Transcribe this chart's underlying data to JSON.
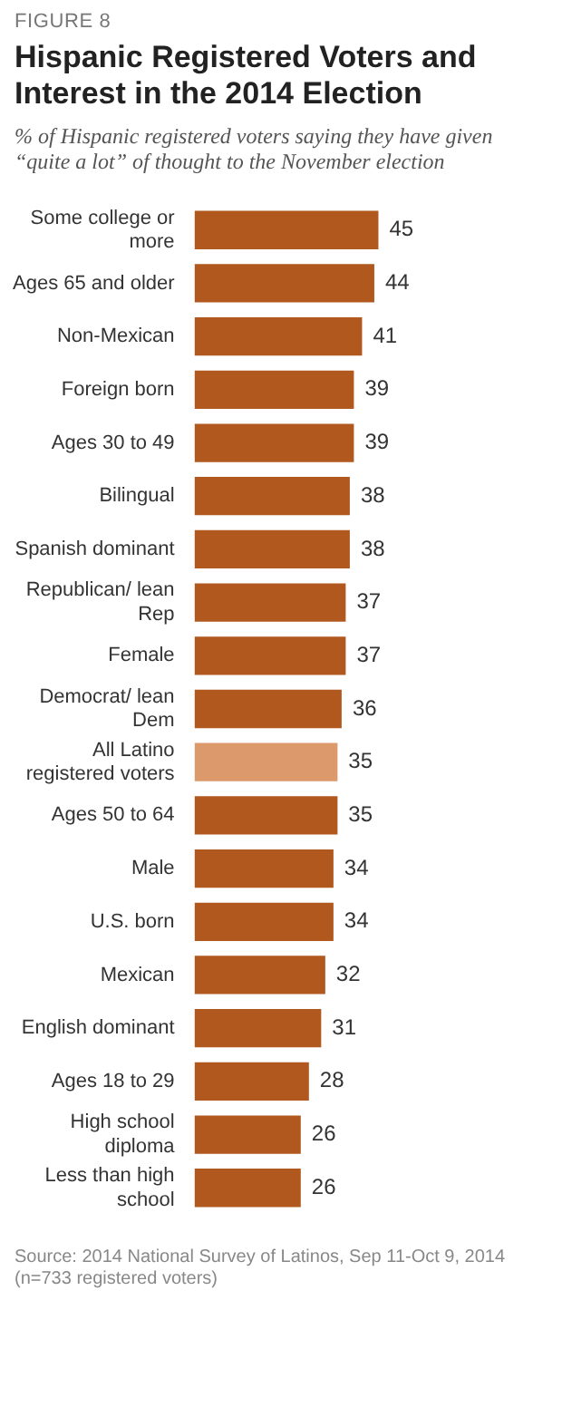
{
  "chart_data": {
    "type": "bar",
    "orientation": "horizontal",
    "title": "Hispanic Registered Voters and Interest in the 2014 Election",
    "subtitle": "% of Hispanic registered voters saying they have given “quite a lot” of thought to the November election",
    "categories": [
      "Some college or more",
      "Ages 65 and older",
      "Non-Mexican",
      "Foreign born",
      "Ages 30 to 49",
      "Bilingual",
      "Spanish dominant",
      "Republican/ lean Rep",
      "Female",
      "Democrat/ lean Dem",
      "All Latino registered voters",
      "Ages 50 to 64",
      "Male",
      "U.S. born",
      "Mexican",
      "English dominant",
      "Ages 18 to 29",
      "High school diploma",
      "Less than high school"
    ],
    "values": [
      45,
      44,
      41,
      39,
      39,
      38,
      38,
      37,
      37,
      36,
      35,
      35,
      34,
      34,
      32,
      31,
      28,
      26,
      26
    ],
    "colors": [
      "#b0581e",
      "#b0581e",
      "#b0581e",
      "#b0581e",
      "#b0581e",
      "#b0581e",
      "#b0581e",
      "#b0581e",
      "#b0581e",
      "#b0581e",
      "#dc9a6c",
      "#b0581e",
      "#b0581e",
      "#b0581e",
      "#b0581e",
      "#b0581e",
      "#b0581e",
      "#b0581e",
      "#b0581e"
    ],
    "data_labels": true,
    "legend": false,
    "annotations": [
      "FIGURE 8",
      "Source: 2014 National Survey of Latinos, Sep 11-Oct 9, 2014 (n=733 registered voters)"
    ]
  }
}
